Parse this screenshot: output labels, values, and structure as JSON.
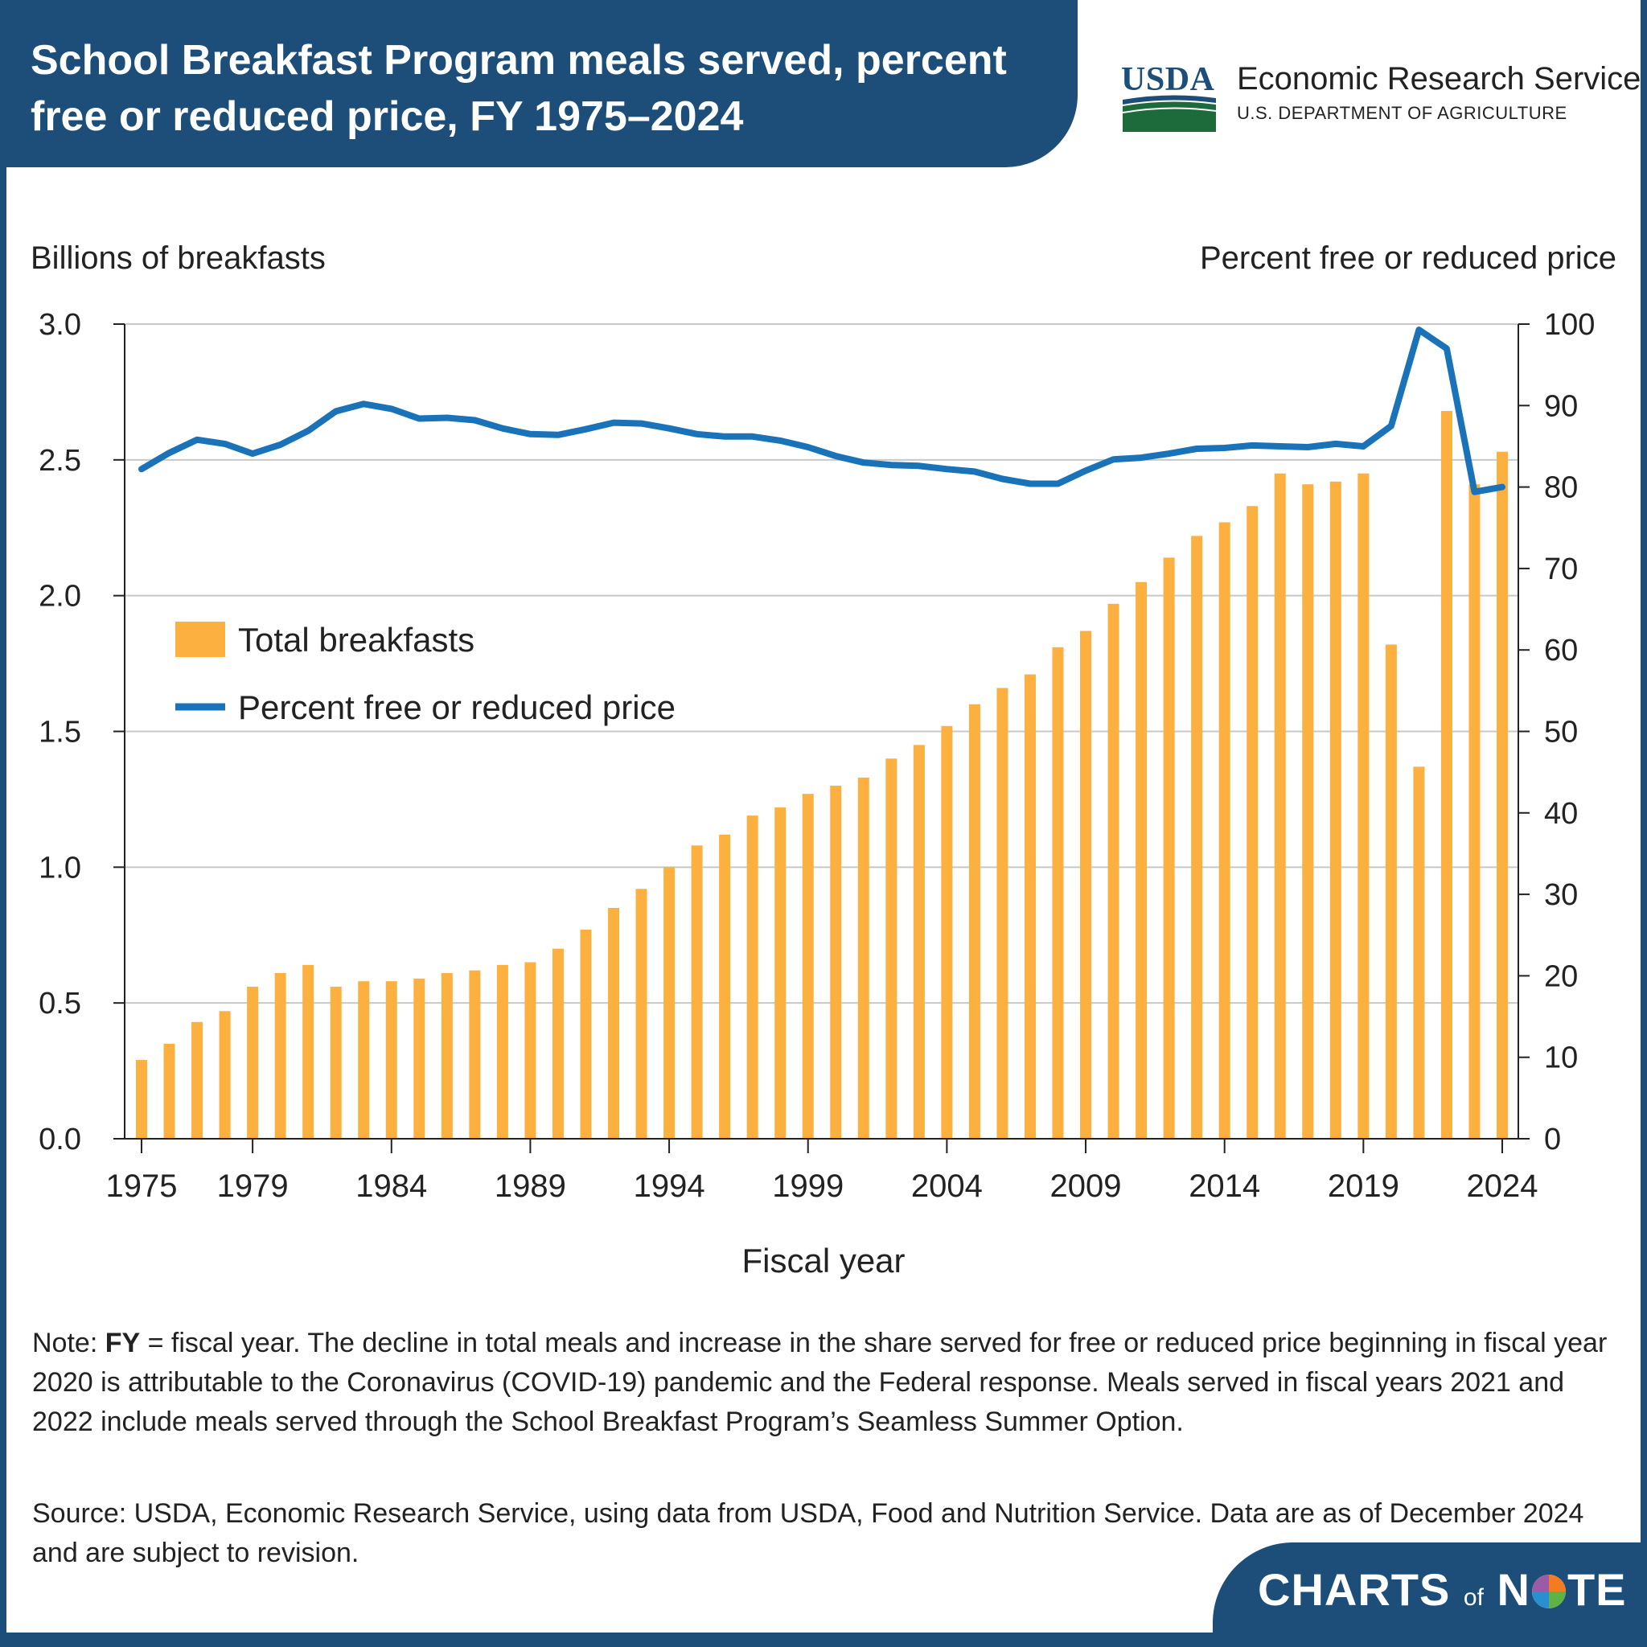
{
  "header": {
    "title": "School Breakfast Program meals served, percent free or reduced price, FY 1975–2024",
    "agency_name": "Economic Research Service",
    "agency_dept": "U.S. DEPARTMENT OF AGRICULTURE",
    "logo_text": "USDA"
  },
  "chart_data": {
    "type": "bar",
    "xlabel": "Fiscal year",
    "y_left_label": "Billions of breakfasts",
    "y_right_label": "Percent free or reduced price",
    "ylim_left": [
      0,
      3
    ],
    "ylim_right": [
      0,
      100
    ],
    "y_left_ticks": [
      "0.0",
      "0.5",
      "1.0",
      "1.5",
      "2.0",
      "2.5",
      "3.0"
    ],
    "y_right_ticks": [
      "0",
      "10",
      "20",
      "30",
      "40",
      "50",
      "60",
      "70",
      "80",
      "90",
      "100"
    ],
    "x_tick_labels": [
      "1975",
      "1979",
      "1984",
      "1989",
      "1994",
      "1999",
      "2004",
      "2009",
      "2014",
      "2019",
      "2024"
    ],
    "grid": "horizontal",
    "legend_position": "upper-left",
    "categories": [
      1975,
      1976,
      1977,
      1978,
      1979,
      1980,
      1981,
      1982,
      1983,
      1984,
      1985,
      1986,
      1987,
      1988,
      1989,
      1990,
      1991,
      1992,
      1993,
      1994,
      1995,
      1996,
      1997,
      1998,
      1999,
      2000,
      2001,
      2002,
      2003,
      2004,
      2005,
      2006,
      2007,
      2008,
      2009,
      2010,
      2011,
      2012,
      2013,
      2014,
      2015,
      2016,
      2017,
      2018,
      2019,
      2020,
      2021,
      2022,
      2023,
      2024
    ],
    "series": [
      {
        "name": "Total breakfasts",
        "type": "bar",
        "axis": "left",
        "color": "#fbb040",
        "values": [
          0.29,
          0.35,
          0.43,
          0.47,
          0.56,
          0.61,
          0.64,
          0.56,
          0.58,
          0.58,
          0.59,
          0.61,
          0.62,
          0.64,
          0.65,
          0.7,
          0.77,
          0.85,
          0.92,
          1.0,
          1.08,
          1.12,
          1.19,
          1.22,
          1.27,
          1.3,
          1.33,
          1.4,
          1.45,
          1.52,
          1.6,
          1.66,
          1.71,
          1.81,
          1.87,
          1.97,
          2.05,
          2.14,
          2.22,
          2.27,
          2.33,
          2.45,
          2.41,
          2.42,
          2.45,
          1.82,
          1.37,
          2.68,
          2.41,
          2.53
        ]
      },
      {
        "name": "Percent free or reduced price",
        "type": "line",
        "axis": "right",
        "color": "#1a73b8",
        "values": [
          82.2,
          84.2,
          85.8,
          85.3,
          84.1,
          85.2,
          86.9,
          89.3,
          90.2,
          89.6,
          88.4,
          88.5,
          88.2,
          87.2,
          86.5,
          86.4,
          87.1,
          87.9,
          87.8,
          87.2,
          86.5,
          86.2,
          86.2,
          85.7,
          84.9,
          83.8,
          83.0,
          82.7,
          82.6,
          82.2,
          81.9,
          81.0,
          80.4,
          80.4,
          82.0,
          83.4,
          83.6,
          84.1,
          84.7,
          84.8,
          85.1,
          85.0,
          84.9,
          85.3,
          85.0,
          87.5,
          99.3,
          97.0,
          79.4,
          80.0
        ]
      }
    ]
  },
  "note": {
    "prefix": "Note: ",
    "bold": "FY",
    "text": " = fiscal year. The decline in total meals and increase in the share served for free or reduced price beginning in fiscal year 2020 is attributable to the Coronavirus (COVID-19) pandemic and the Federal response. Meals served in fiscal years 2021 and 2022 include meals served through the School Breakfast Program’s Seamless Summer Option."
  },
  "source": "Source: USDA, Economic Research Service, using data from USDA, Food and Nutrition Service. Data are as of December 2024 and are subject to revision.",
  "footer": {
    "brand_charts": "CHARTS",
    "brand_of": "of",
    "brand_n": "N",
    "brand_te": "TE"
  },
  "colors": {
    "header_bg": "#1d4e7a",
    "bar": "#fbb040",
    "line": "#1a73b8"
  }
}
